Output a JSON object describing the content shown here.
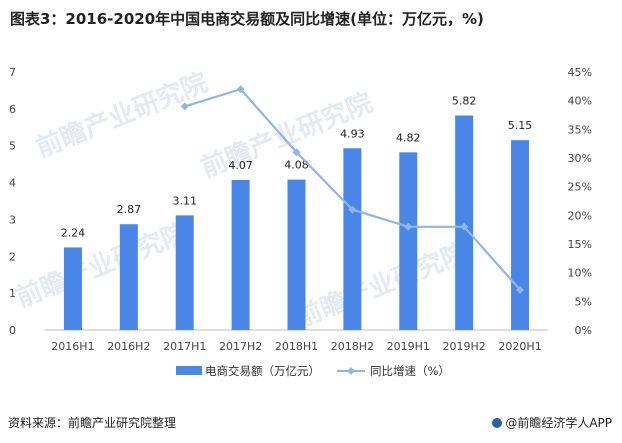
{
  "title": "图表3：2016-2020年中国电商交易额及同比增速(单位：万亿元，%)",
  "watermark": "前瞻产业研究院",
  "footer": {
    "source": "资料来源：前瞻产业研究院整理",
    "brand": "@前瞻经济学人APP"
  },
  "colors": {
    "bar": "#4a86e8",
    "line": "#8fb6e6",
    "axis": "#bfbfbf"
  },
  "chart_data": {
    "type": "bar",
    "categories": [
      "2016H1",
      "2016H2",
      "2017H1",
      "2017H2",
      "2018H1",
      "2018H2",
      "2019H1",
      "2019H2",
      "2020H1"
    ],
    "series": [
      {
        "name": "电商交易额（万亿元）",
        "type": "bar",
        "values": [
          2.24,
          2.87,
          3.11,
          4.07,
          4.08,
          4.93,
          4.82,
          5.82,
          5.15
        ],
        "labels": [
          "2.24",
          "2.87",
          "3.11",
          "4.07",
          "4.08",
          "4.93",
          "4.82",
          "5.82",
          "5.15"
        ]
      },
      {
        "name": "同比增速（%）",
        "type": "line",
        "axis": "right",
        "values": [
          null,
          null,
          39,
          42,
          31,
          21,
          18,
          18,
          7
        ]
      }
    ],
    "y_left": {
      "min": 0,
      "max": 7,
      "ticks": [
        "0",
        "1",
        "2",
        "3",
        "4",
        "5",
        "6",
        "7"
      ]
    },
    "y_right": {
      "min": 0,
      "max": 45,
      "ticks": [
        "0%",
        "5%",
        "10%",
        "15%",
        "20%",
        "25%",
        "30%",
        "35%",
        "40%",
        "45%"
      ]
    },
    "legend": "bottom-center"
  }
}
